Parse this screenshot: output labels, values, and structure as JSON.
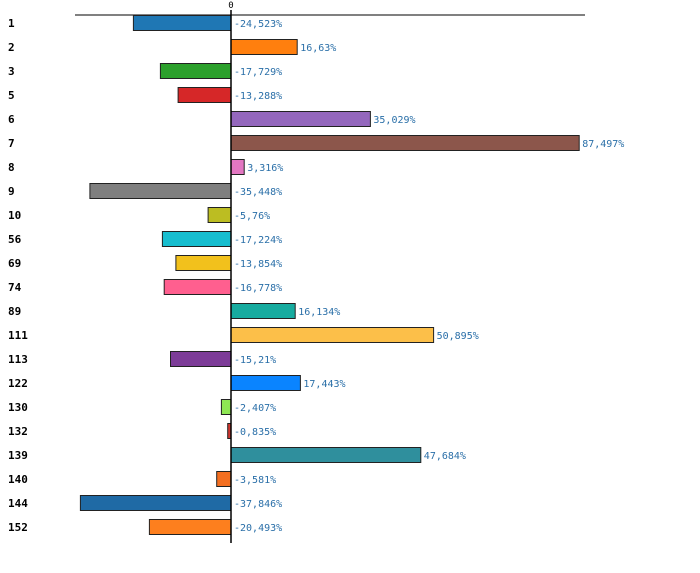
{
  "chart_data": {
    "type": "bar",
    "orientation": "horizontal",
    "zero_tick_label": "0",
    "categories": [
      "1",
      "2",
      "3",
      "5",
      "6",
      "7",
      "8",
      "9",
      "10",
      "56",
      "69",
      "74",
      "89",
      "111",
      "113",
      "122",
      "130",
      "132",
      "139",
      "140",
      "144",
      "152"
    ],
    "values": [
      -24.523,
      16.63,
      -17.729,
      -13.288,
      35.029,
      87.497,
      3.316,
      -35.448,
      -5.76,
      -17.224,
      -13.854,
      -16.778,
      16.134,
      50.895,
      -15.21,
      17.443,
      -2.407,
      -0.835,
      47.684,
      -3.581,
      -37.846,
      -20.493
    ],
    "value_labels": [
      "-24,523%",
      "16,63%",
      "-17,729%",
      "-13,288%",
      "35,029%",
      "87,497%",
      "3,316%",
      "-35,448%",
      "-5,76%",
      "-17,224%",
      "-13,854%",
      "-16,778%",
      "16,134%",
      "50,895%",
      "-15,21%",
      "17,443%",
      "-2,407%",
      "-0,835%",
      "47,684%",
      "-3,581%",
      "-37,846%",
      "-20,493%"
    ],
    "colors": [
      "#1f77b4",
      "#ff7f0e",
      "#2ca02c",
      "#d62728",
      "#9467bd",
      "#8c564b",
      "#e377c2",
      "#7f7f7f",
      "#bcbd22",
      "#17becf",
      "#f2c11c",
      "#ff5f8f",
      "#17ab9f",
      "#fcbf49",
      "#7d3c98",
      "#0a84ff",
      "#8ee653",
      "#d1362f",
      "#2f8f9d",
      "#f36f21",
      "#1f6aa5",
      "#fd7f1e"
    ],
    "xlim": [
      -40,
      90
    ],
    "title": "",
    "xlabel": "",
    "ylabel": ""
  }
}
